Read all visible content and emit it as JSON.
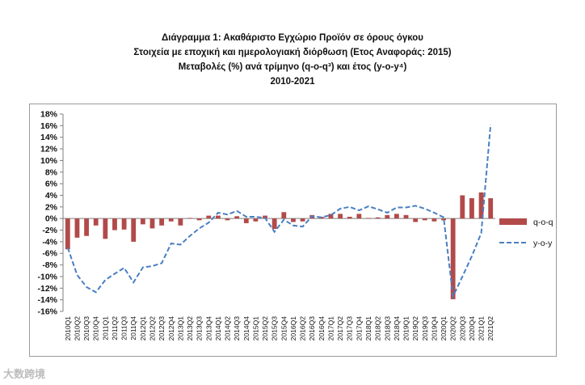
{
  "title_lines": [
    "Διάγραμμα 1: Ακαθάριστο Εγχώριο Προϊόν σε όρους όγκου",
    "Στοιχεία με εποχική και ημερολογιακή διόρθωση (Ετος Αναφοράς: 2015)",
    "Μεταβολές (%) ανά τρίμηνο (q-o-q³) και έτος (y-o-y⁴)",
    "2010-2021"
  ],
  "watermark": "大数跨境",
  "chart_data": {
    "type": "bar+line",
    "categories": [
      "2010Q1",
      "2010Q2",
      "2010Q3",
      "2010Q4",
      "2011Q1",
      "2011Q2",
      "2011Q3",
      "2011Q4",
      "2012Q1",
      "2012Q2",
      "2012Q3",
      "2012Q4",
      "2013Q1",
      "2013Q2",
      "2013Q3",
      "2013Q4",
      "2014Q1",
      "2014Q2",
      "2014Q3",
      "2014Q4",
      "2015Q1",
      "2015Q2",
      "2015Q3",
      "2015Q4",
      "2016Q1",
      "2016Q2",
      "2016Q3",
      "2016Q4",
      "2017Q1",
      "2017Q2",
      "2017Q3",
      "2017Q4",
      "2018Q1",
      "2018Q2",
      "2018Q3",
      "2018Q4",
      "2019Q1",
      "2019Q2",
      "2019Q3",
      "2019Q4",
      "2020Q1",
      "2020Q2",
      "2020Q3",
      "2020Q4",
      "2021Q1",
      "2021Q2"
    ],
    "series": [
      {
        "name": "q-o-q",
        "type": "bar",
        "color": "#b24a4a",
        "values": [
          -5.3,
          -3.3,
          -3.0,
          -1.2,
          -3.5,
          -2.0,
          -1.9,
          -4.0,
          -1.0,
          -1.7,
          -1.2,
          -0.5,
          -1.2,
          0.1,
          -0.3,
          0.5,
          0.5,
          -0.3,
          0.4,
          -0.8,
          -0.5,
          0.5,
          -1.8,
          1.1,
          -0.6,
          -0.5,
          0.6,
          0.3,
          0.8,
          0.8,
          0.3,
          0.8,
          0.1,
          0.2,
          0.6,
          0.8,
          0.6,
          -0.6,
          -0.3,
          -0.5,
          -0.3,
          -13.9,
          4.0,
          3.5,
          4.5,
          3.5
        ]
      },
      {
        "name": "y-o-y",
        "type": "line",
        "style": "dashed",
        "color": "#4a7fc1",
        "values": [
          -5.0,
          -9.7,
          -11.8,
          -12.7,
          -10.6,
          -9.5,
          -8.5,
          -11.0,
          -8.4,
          -8.2,
          -7.7,
          -4.3,
          -4.5,
          -3.0,
          -1.7,
          -0.7,
          1.0,
          0.7,
          1.3,
          0.3,
          0.3,
          0.1,
          -2.3,
          -0.2,
          -1.2,
          -1.4,
          0.4,
          0.2,
          0.6,
          1.7,
          2.0,
          1.4,
          2.1,
          1.6,
          1.0,
          1.9,
          1.9,
          2.2,
          1.7,
          1.0,
          0.2,
          -13.4,
          -10.0,
          -6.5,
          -2.5,
          16.2
        ]
      }
    ],
    "y_ticks": [
      "18%",
      "16%",
      "14%",
      "12%",
      "10%",
      "8%",
      "6%",
      "4%",
      "2%",
      "0%",
      "-2%",
      "-4%",
      "-6%",
      "-8%",
      "-10%",
      "-12%",
      "-14%",
      "-16%"
    ],
    "ylim": [
      -16,
      18
    ],
    "grid": false,
    "legend_position": "right"
  }
}
